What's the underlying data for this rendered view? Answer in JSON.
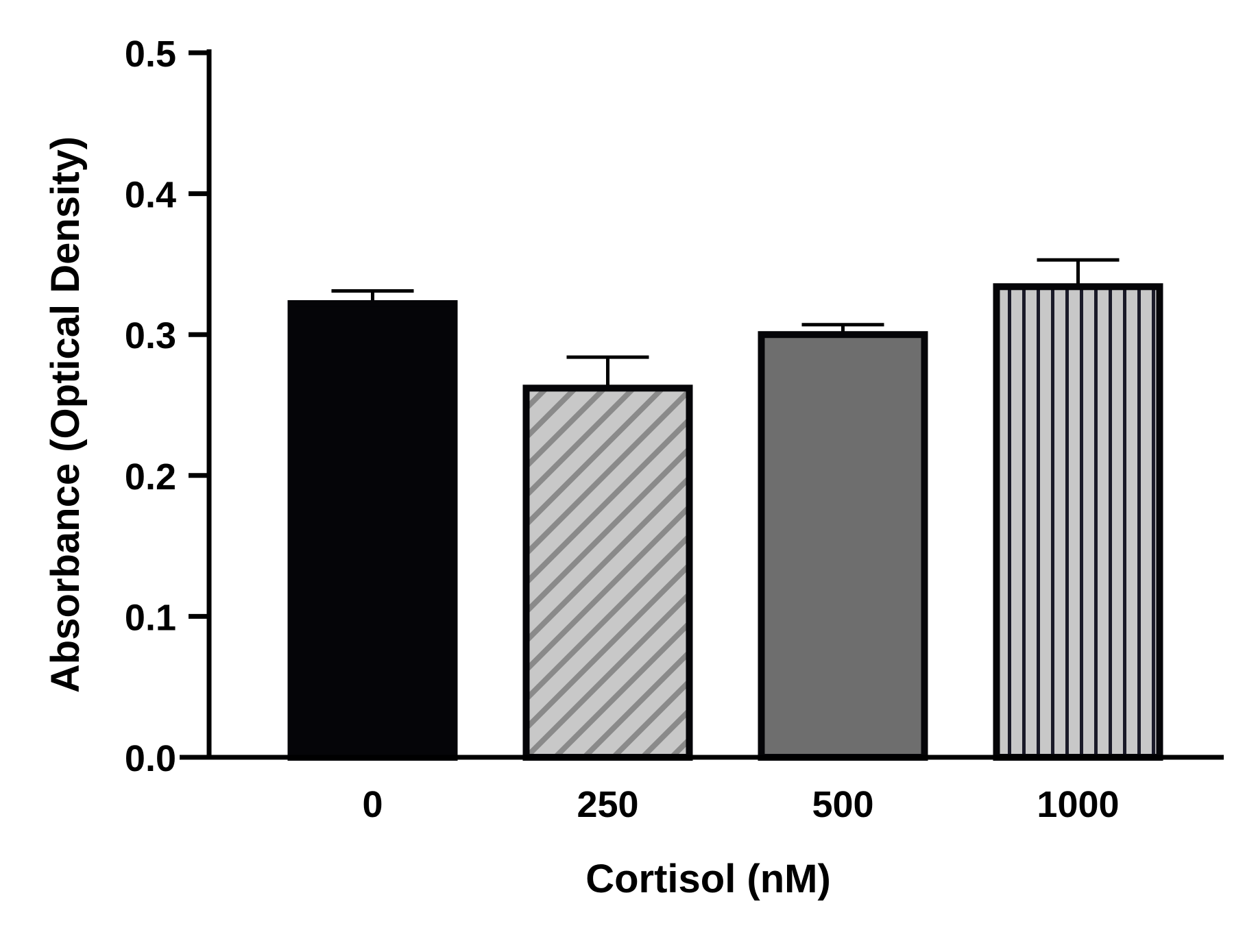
{
  "chart_data": {
    "type": "bar",
    "title": "",
    "xlabel": "Cortisol (nM)",
    "ylabel": "Absorbance (Optical Density)",
    "categories": [
      "0",
      "250",
      "500",
      "1000"
    ],
    "values": [
      0.322,
      0.262,
      0.3,
      0.334
    ],
    "errors": [
      0.009,
      0.022,
      0.007,
      0.019
    ],
    "ylim": [
      0.0,
      0.5
    ],
    "yticks": [
      0.0,
      0.1,
      0.2,
      0.3,
      0.4,
      0.5
    ],
    "ytick_labels": [
      "0.0",
      "0.1",
      "0.2",
      "0.3",
      "0.4",
      "0.5"
    ],
    "grid": false,
    "legend": "none",
    "bar_styles": [
      {
        "fill": "#050508",
        "pattern": "solid"
      },
      {
        "fill": "#c8c8c8",
        "pattern": "diagonal-hatch"
      },
      {
        "fill": "#6e6e6e",
        "pattern": "solid"
      },
      {
        "fill": "#c8c8c8",
        "pattern": "vertical-stripes"
      }
    ]
  }
}
